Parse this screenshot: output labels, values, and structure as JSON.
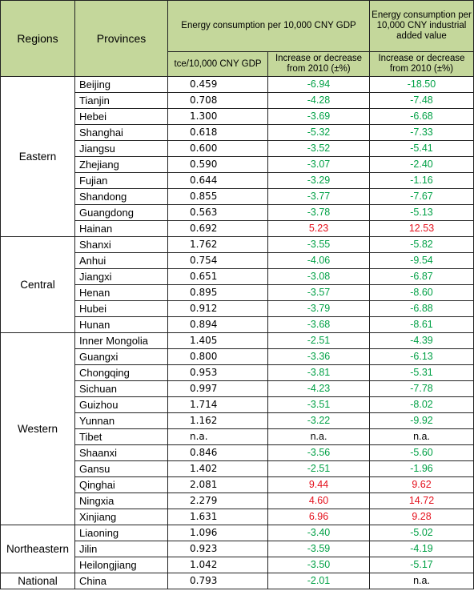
{
  "header": {
    "regions": "Regions",
    "provinces": "Provinces",
    "gdp_group": "Energy consumption per 10,000 CNY GDP",
    "ind_group": "Energy consumption per 10,000 CNY industrial added value",
    "gdp_unit": "tce/10,000 CNY GDP",
    "gdp_change": "Increase or decrease from 2010 (±%)",
    "ind_change": "Increase or decrease from 2010 (±%)"
  },
  "colors": {
    "decrease": "#00a045",
    "increase": "#e4101c",
    "header_bg": "#c4d79b"
  },
  "groups": [
    {
      "region": "Eastern",
      "rows": [
        {
          "province": "Beijing",
          "gdp": "0.459",
          "gdp_change": "-6.94",
          "ind_change": "-18.50"
        },
        {
          "province": "Tianjin",
          "gdp": "0.708",
          "gdp_change": "-4.28",
          "ind_change": "-7.48"
        },
        {
          "province": "Hebei",
          "gdp": "1.300",
          "gdp_change": "-3.69",
          "ind_change": "-6.68"
        },
        {
          "province": "Shanghai",
          "gdp": "0.618",
          "gdp_change": "-5.32",
          "ind_change": "-7.33"
        },
        {
          "province": "Jiangsu",
          "gdp": "0.600",
          "gdp_change": "-3.52",
          "ind_change": "-5.41"
        },
        {
          "province": "Zhejiang",
          "gdp": "0.590",
          "gdp_change": "-3.07",
          "ind_change": "-2.40"
        },
        {
          "province": "Fujian",
          "gdp": "0.644",
          "gdp_change": "-3.29",
          "ind_change": "-1.16"
        },
        {
          "province": "Shandong",
          "gdp": "0.855",
          "gdp_change": "-3.77",
          "ind_change": "-7.67"
        },
        {
          "province": "Guangdong",
          "gdp": "0.563",
          "gdp_change": "-3.78",
          "ind_change": "-5.13"
        },
        {
          "province": "Hainan",
          "gdp": "0.692",
          "gdp_change": "5.23",
          "ind_change": "12.53"
        }
      ]
    },
    {
      "region": "Central",
      "rows": [
        {
          "province": "Shanxi",
          "gdp": "1.762",
          "gdp_change": "-3.55",
          "ind_change": "-5.82"
        },
        {
          "province": "Anhui",
          "gdp": "0.754",
          "gdp_change": "-4.06",
          "ind_change": "-9.54"
        },
        {
          "province": "Jiangxi",
          "gdp": "0.651",
          "gdp_change": "-3.08",
          "ind_change": "-6.87"
        },
        {
          "province": "Henan",
          "gdp": "0.895",
          "gdp_change": "-3.57",
          "ind_change": "-8.60"
        },
        {
          "province": "Hubei",
          "gdp": "0.912",
          "gdp_change": "-3.79",
          "ind_change": "-6.88"
        },
        {
          "province": "Hunan",
          "gdp": "0.894",
          "gdp_change": "-3.68",
          "ind_change": "-8.61"
        }
      ]
    },
    {
      "region": "Western",
      "rows": [
        {
          "province": "Inner Mongolia",
          "gdp": "1.405",
          "gdp_change": "-2.51",
          "ind_change": "-4.39"
        },
        {
          "province": "Guangxi",
          "gdp": "0.800",
          "gdp_change": "-3.36",
          "ind_change": "-6.13"
        },
        {
          "province": "Chongqing",
          "gdp": "0.953",
          "gdp_change": "-3.81",
          "ind_change": "-5.31"
        },
        {
          "province": "Sichuan",
          "gdp": "0.997",
          "gdp_change": "-4.23",
          "ind_change": "-7.78"
        },
        {
          "province": "Guizhou",
          "gdp": "1.714",
          "gdp_change": "-3.51",
          "ind_change": "-8.02"
        },
        {
          "province": "Yunnan",
          "gdp": "1.162",
          "gdp_change": "-3.22",
          "ind_change": "-9.92"
        },
        {
          "province": "Tibet",
          "gdp": "n.a.",
          "gdp_change": "n.a.",
          "ind_change": "n.a."
        },
        {
          "province": "Shaanxi",
          "gdp": "0.846",
          "gdp_change": "-3.56",
          "ind_change": "-5.60"
        },
        {
          "province": "Gansu",
          "gdp": "1.402",
          "gdp_change": "-2.51",
          "ind_change": "-1.96"
        },
        {
          "province": "Qinghai",
          "gdp": "2.081",
          "gdp_change": "9.44",
          "ind_change": "9.62"
        },
        {
          "province": "Ningxia",
          "gdp": "2.279",
          "gdp_change": "4.60",
          "ind_change": "14.72"
        },
        {
          "province": "Xinjiang",
          "gdp": "1.631",
          "gdp_change": "6.96",
          "ind_change": "9.28"
        }
      ]
    },
    {
      "region": "Northeastern",
      "rows": [
        {
          "province": "Liaoning",
          "gdp": "1.096",
          "gdp_change": "-3.40",
          "ind_change": "-5.02"
        },
        {
          "province": "Jilin",
          "gdp": "0.923",
          "gdp_change": "-3.59",
          "ind_change": "-4.19"
        },
        {
          "province": "Heilongjiang",
          "gdp": "1.042",
          "gdp_change": "-3.50",
          "ind_change": "-5.17"
        }
      ]
    },
    {
      "region": "National",
      "rows": [
        {
          "province": "China",
          "gdp": "0.793",
          "gdp_change": "-2.01",
          "ind_change": "n.a."
        }
      ]
    }
  ]
}
